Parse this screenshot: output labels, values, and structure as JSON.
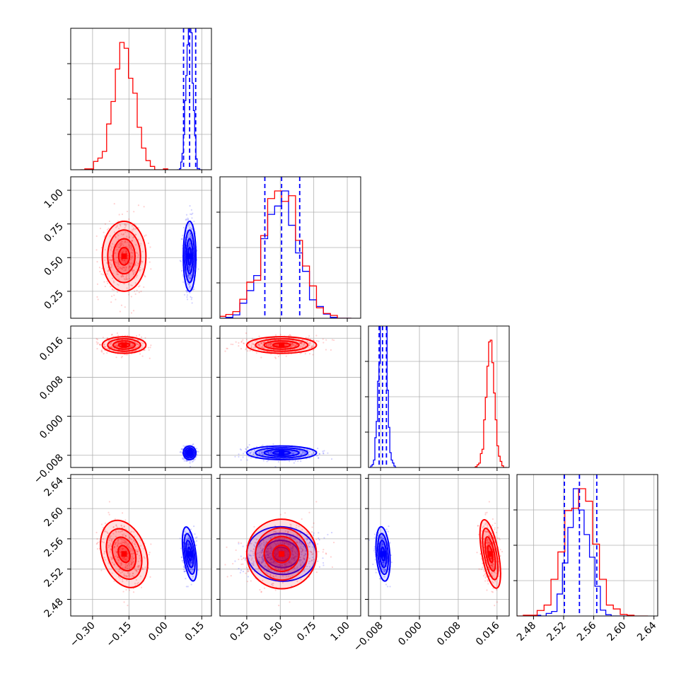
{
  "chart_data": {
    "type": "scatter",
    "title": "",
    "colors": {
      "blue": "#0000ff",
      "red": "#ff0000",
      "grid": "#b0b0b0"
    },
    "variables": [
      {
        "ticks": [
          "−0.30",
          "−0.15",
          "0.00",
          "0.15"
        ],
        "tick_values": [
          -0.3,
          -0.15,
          0.0,
          0.15
        ],
        "range": [
          -0.39,
          0.19
        ]
      },
      {
        "ticks": [
          "0.25",
          "0.50",
          "0.75",
          "1.00"
        ],
        "tick_values": [
          0.25,
          0.5,
          0.75,
          1.0
        ],
        "range": [
          0.05,
          1.1
        ]
      },
      {
        "ticks": [
          "−0.008",
          "0.000",
          "0.008",
          "0.016"
        ],
        "tick_values": [
          -0.008,
          0.0,
          0.008,
          0.016
        ],
        "range": [
          -0.0105,
          0.0185
        ]
      },
      {
        "ticks": [
          "2.48",
          "2.52",
          "2.56",
          "2.60",
          "2.64"
        ],
        "tick_values": [
          2.48,
          2.52,
          2.56,
          2.6,
          2.64
        ],
        "range": [
          2.458,
          2.645
        ]
      }
    ],
    "series": [
      {
        "color": "blue",
        "mean": [
          0.1,
          0.51,
          -0.0075,
          2.54
        ],
        "std": [
          0.013,
          0.13,
          0.0007,
          0.018
        ],
        "quantile_lines": [
          [
            0.075,
            0.1,
            0.125
          ],
          [
            0.385,
            0.51,
            0.645
          ],
          [
            -0.0083,
            -0.0076,
            -0.0068
          ],
          [
            2.521,
            2.541,
            2.564
          ]
        ]
      },
      {
        "color": "red",
        "mean": [
          -0.17,
          0.51,
          0.0146,
          2.54
        ],
        "std": [
          0.045,
          0.13,
          0.00085,
          0.023
        ]
      }
    ]
  }
}
